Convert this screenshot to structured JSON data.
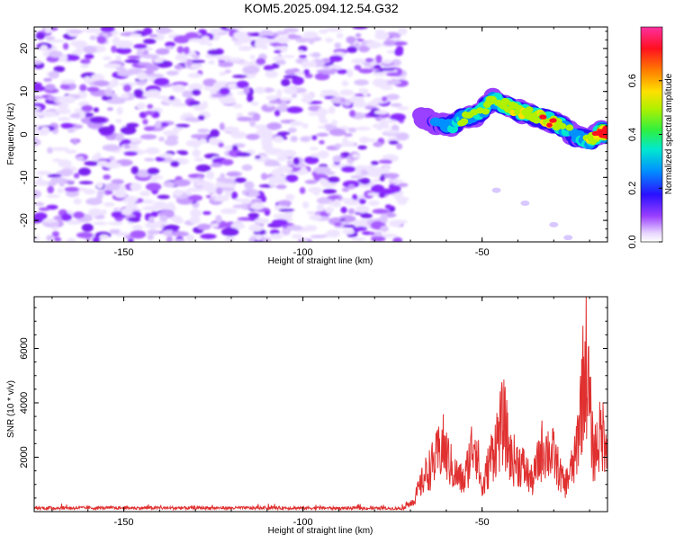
{
  "chart_data": [
    {
      "type": "heatmap",
      "title": "KOM5.2025.094.12.54.G32",
      "xlabel": "Height of straight line (km)",
      "ylabel": "Frequency (Hz)",
      "colorbar_label": "Normalized spectral amplitude",
      "xlim": [
        -175,
        -15
      ],
      "ylim": [
        -25,
        25
      ],
      "xticks": [
        -150,
        -100,
        -50
      ],
      "yticks": [
        -20,
        -10,
        0,
        10,
        20
      ],
      "cbar_range": [
        0,
        0.8
      ],
      "cbar_ticks": [
        0.0,
        0.2,
        0.4,
        0.6
      ],
      "noise_region": {
        "x": [
          -175,
          -72
        ],
        "y": [
          -25,
          25
        ],
        "level": 0.04
      },
      "signal_ridge": [
        {
          "x": -67,
          "y": 4,
          "amp": 0.1
        },
        {
          "x": -63,
          "y": 2.5,
          "amp": 0.2
        },
        {
          "x": -59,
          "y": 2,
          "amp": 0.25
        },
        {
          "x": -55,
          "y": 4,
          "amp": 0.3
        },
        {
          "x": -51,
          "y": 4.5,
          "amp": 0.35
        },
        {
          "x": -47,
          "y": 8,
          "amp": 0.3
        },
        {
          "x": -44,
          "y": 7,
          "amp": 0.35
        },
        {
          "x": -40,
          "y": 5.5,
          "amp": 0.4
        },
        {
          "x": -36,
          "y": 4.5,
          "amp": 0.35
        },
        {
          "x": -32,
          "y": 3.5,
          "amp": 0.45
        },
        {
          "x": -28,
          "y": 2,
          "amp": 0.3
        },
        {
          "x": -24,
          "y": -0.5,
          "amp": 0.25
        },
        {
          "x": -20,
          "y": -1.5,
          "amp": 0.35
        },
        {
          "x": -17,
          "y": 0.5,
          "amp": 0.5
        },
        {
          "x": -15,
          "y": 0.5,
          "amp": 0.75
        }
      ],
      "faint_streak": [
        {
          "x": -46,
          "y": -13
        },
        {
          "x": -38,
          "y": -16
        },
        {
          "x": -30,
          "y": -21
        },
        {
          "x": -26,
          "y": -24
        }
      ]
    },
    {
      "type": "line",
      "xlabel": "Height of straight line (km)",
      "ylabel": "SNR (10 * v/v)",
      "xlim": [
        -175,
        -15
      ],
      "ylim": [
        0,
        7900
      ],
      "xticks": [
        -150,
        -100,
        -50
      ],
      "yticks": [
        2000,
        4000,
        6000
      ],
      "color": "#e03030",
      "envelope": [
        {
          "x": -175,
          "y": 150
        },
        {
          "x": -100,
          "y": 150
        },
        {
          "x": -72,
          "y": 130
        },
        {
          "x": -69,
          "y": 600
        },
        {
          "x": -66,
          "y": 1800
        },
        {
          "x": -63,
          "y": 2600
        },
        {
          "x": -61,
          "y": 3350
        },
        {
          "x": -58,
          "y": 2000
        },
        {
          "x": -55,
          "y": 1500
        },
        {
          "x": -52,
          "y": 3900
        },
        {
          "x": -50,
          "y": 1000
        },
        {
          "x": -48,
          "y": 2500
        },
        {
          "x": -44,
          "y": 4600
        },
        {
          "x": -42,
          "y": 2700
        },
        {
          "x": -39,
          "y": 2400
        },
        {
          "x": -36,
          "y": 1500
        },
        {
          "x": -33,
          "y": 3300
        },
        {
          "x": -30,
          "y": 2800
        },
        {
          "x": -27,
          "y": 1300
        },
        {
          "x": -24,
          "y": 2600
        },
        {
          "x": -22,
          "y": 6200
        },
        {
          "x": -21,
          "y": 7800
        },
        {
          "x": -20,
          "y": 5300
        },
        {
          "x": -19,
          "y": 2900
        },
        {
          "x": -17,
          "y": 3800
        },
        {
          "x": -15,
          "y": 4100
        }
      ]
    }
  ]
}
